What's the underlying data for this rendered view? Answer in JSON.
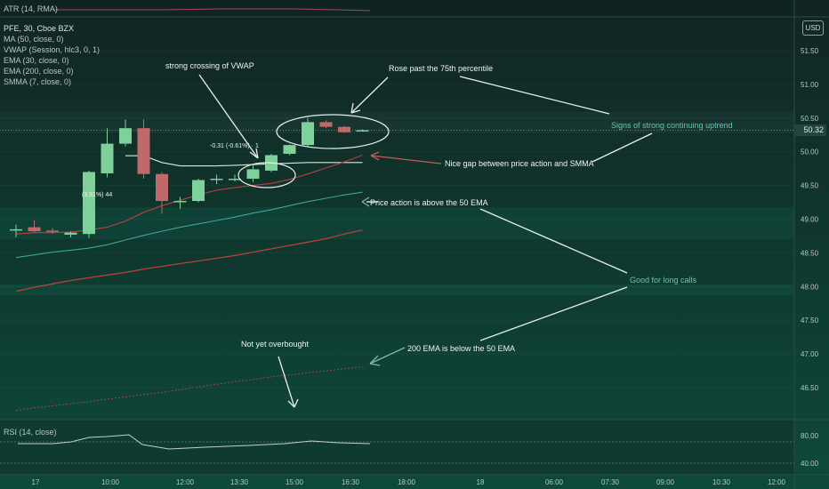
{
  "atr_panel": {
    "label": "ATR (14, RMA)"
  },
  "price_panel": {
    "symbol_line": "PFE, 30, Cboe BZX",
    "indicators": [
      "MA (50, close, 0)",
      "VWAP (Session, hlc3, 0, 1)",
      "EMA (30, close, 0)",
      "EMA (200, close, 0)",
      "SMMA (7, close, 0)"
    ],
    "currency": "USD",
    "price_tag": "50.32",
    "pct_label_1": "-0.31 (-0.61%) · 1",
    "pct_label_2": "(3.91%) 44"
  },
  "rsi_panel": {
    "label": "RSI (14, close)",
    "axis": [
      "80.00",
      "40.00"
    ]
  },
  "annotations": {
    "vwap": "strong crossing of VWAP",
    "p75": "Rose past the 75th percentile",
    "signs": "Signs of strong continuing uptrend",
    "gap": "Nice gap between price action and SMMA",
    "above50": "Price action is above the 50 EMA",
    "longcalls": "Good for long calls",
    "ema200": "200 EMA is below the 50 EMA",
    "overbought": "Not yet overbought"
  },
  "colors": {
    "up": "#7ed19a",
    "down": "#c0696a",
    "background": "#0f2a26",
    "vwap": "#d9e6e3",
    "ema_red": "#b8413f",
    "ema_teal": "#3aa59a"
  },
  "chart_data": {
    "type": "candlestick",
    "title": "PFE, 30, Cboe BZX",
    "y_axis_ticks": [
      51.5,
      51.0,
      50.5,
      50.0,
      49.5,
      49.0,
      48.5,
      48.0,
      47.5,
      47.0,
      46.5
    ],
    "ylim": [
      46.2,
      52.2
    ],
    "x_axis_ticks": [
      "17",
      "10:00",
      "12:00",
      "13:30",
      "15:00",
      "16:30",
      "18:00",
      "18",
      "06:00",
      "07:30",
      "09:00",
      "10:30",
      "12:00"
    ],
    "candles": [
      {
        "open": 48.83,
        "high": 48.92,
        "low": 48.73,
        "close": 48.85
      },
      {
        "open": 48.88,
        "high": 48.98,
        "low": 48.8,
        "close": 48.82
      },
      {
        "open": 48.83,
        "high": 48.87,
        "low": 48.78,
        "close": 48.82
      },
      {
        "open": 48.77,
        "high": 48.82,
        "low": 48.73,
        "close": 48.8
      },
      {
        "open": 48.78,
        "high": 49.72,
        "low": 48.72,
        "close": 49.7
      },
      {
        "open": 49.68,
        "high": 50.35,
        "low": 49.62,
        "close": 50.12
      },
      {
        "open": 50.12,
        "high": 50.48,
        "low": 50.08,
        "close": 50.35
      },
      {
        "open": 50.35,
        "high": 50.48,
        "low": 49.6,
        "close": 49.67
      },
      {
        "open": 49.67,
        "high": 49.7,
        "low": 49.08,
        "close": 49.27
      },
      {
        "open": 49.27,
        "high": 49.33,
        "low": 49.15,
        "close": 49.27
      },
      {
        "open": 49.27,
        "high": 49.6,
        "low": 49.25,
        "close": 49.58
      },
      {
        "open": 49.58,
        "high": 49.66,
        "low": 49.52,
        "close": 49.6
      },
      {
        "open": 49.6,
        "high": 49.66,
        "low": 49.56,
        "close": 49.6
      },
      {
        "open": 49.6,
        "high": 49.8,
        "low": 49.55,
        "close": 49.74
      },
      {
        "open": 49.72,
        "high": 49.97,
        "low": 49.7,
        "close": 49.95
      },
      {
        "open": 49.97,
        "high": 50.11,
        "low": 49.95,
        "close": 50.1
      },
      {
        "open": 50.1,
        "high": 50.5,
        "low": 50.07,
        "close": 50.44
      },
      {
        "open": 50.44,
        "high": 50.47,
        "low": 50.35,
        "close": 50.37
      },
      {
        "open": 50.37,
        "high": 50.38,
        "low": 50.28,
        "close": 50.29
      },
      {
        "open": 50.31,
        "high": 50.33,
        "low": 50.3,
        "close": 50.32
      }
    ],
    "series": [
      {
        "name": "VWAP",
        "values": [
          null,
          null,
          null,
          null,
          null,
          null,
          49.94,
          49.94,
          49.84,
          49.79,
          49.79,
          49.79,
          49.8,
          49.81,
          49.82,
          49.83,
          49.84,
          49.84,
          49.84,
          49.84
        ]
      },
      {
        "name": "SMMA (7, close, 0)",
        "values": [
          48.78,
          48.8,
          48.8,
          48.81,
          48.84,
          48.88,
          48.97,
          49.1,
          49.2,
          49.28,
          49.36,
          49.43,
          49.47,
          49.5,
          49.53,
          49.59,
          49.67,
          49.76,
          49.85,
          49.95
        ]
      },
      {
        "name": "EMA (30, close, 0)",
        "values": [
          48.43,
          48.47,
          48.51,
          48.54,
          48.57,
          48.62,
          48.69,
          48.76,
          48.82,
          48.88,
          48.93,
          48.98,
          49.03,
          49.09,
          49.14,
          49.2,
          49.26,
          49.31,
          49.36,
          49.4
        ]
      },
      {
        "name": "MA (50, close, 0)",
        "values": [
          47.93,
          47.99,
          48.04,
          48.09,
          48.13,
          48.17,
          48.21,
          48.26,
          48.3,
          48.34,
          48.38,
          48.42,
          48.46,
          48.51,
          48.56,
          48.61,
          48.66,
          48.71,
          48.78,
          48.84
        ]
      },
      {
        "name": "EMA (200, close, 0)",
        "values": [
          46.16,
          46.2,
          46.23,
          46.26,
          46.29,
          46.33,
          46.36,
          46.4,
          46.43,
          46.47,
          46.51,
          46.55,
          46.59,
          46.62,
          46.66,
          46.69,
          46.72,
          46.75,
          46.78,
          46.81
        ]
      }
    ]
  }
}
